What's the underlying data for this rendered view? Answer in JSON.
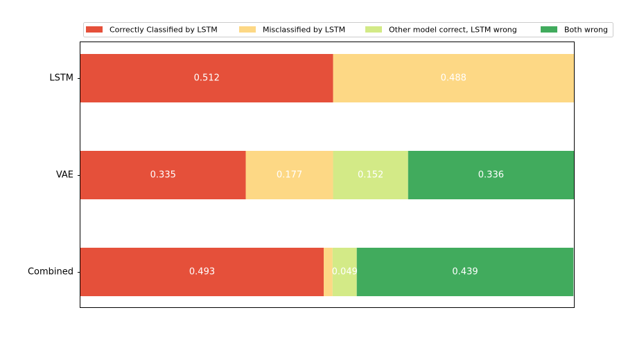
{
  "chart_data": {
    "type": "bar",
    "orientation": "horizontal",
    "stacked": true,
    "categories": [
      "LSTM",
      "VAE",
      "Combined"
    ],
    "series": [
      {
        "name": "Correctly Classified by LSTM",
        "color": "#e5503a",
        "values": [
          0.512,
          0.335,
          0.493
        ],
        "labels": [
          "0.512",
          "0.335",
          "0.493"
        ]
      },
      {
        "name": "Misclassified by LSTM",
        "color": "#fdd885",
        "values": [
          0.488,
          0.177,
          0.018
        ],
        "labels": [
          "0.488",
          "0.177",
          ""
        ]
      },
      {
        "name": "Other model correct, LSTM wrong",
        "color": "#d3ea87",
        "values": [
          0,
          0.152,
          0.049
        ],
        "labels": [
          "",
          "0.152",
          "0.049"
        ]
      },
      {
        "name": "Both wrong",
        "color": "#41ab5d",
        "values": [
          0,
          0.336,
          0.439
        ],
        "labels": [
          "",
          "0.336",
          "0.439"
        ]
      }
    ],
    "xlim": [
      0,
      1.0
    ],
    "x_ticks_visible": false,
    "grid": false,
    "legend": "top, above plot, single row"
  }
}
